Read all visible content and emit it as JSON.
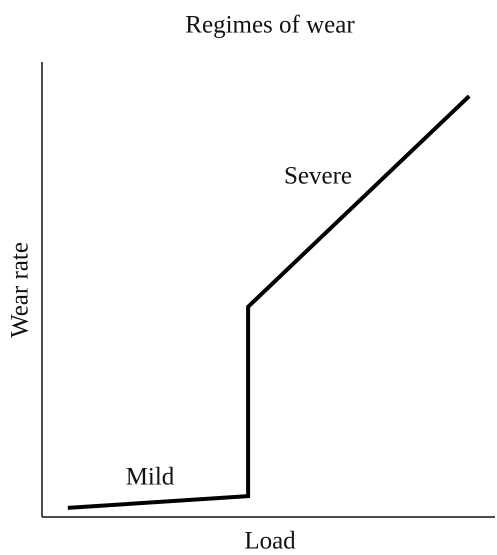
{
  "chart_data": {
    "type": "line",
    "title": "Regimes of wear",
    "x_label": "Load",
    "y_label": "Wear rate",
    "annotations": [
      "Mild",
      "Severe"
    ],
    "x": [
      5.7,
      45.5,
      45.5,
      94.3
    ],
    "series": [
      {
        "color": "#000000",
        "values": [
          2.0,
          4.6,
          46.2,
          92.5
        ]
      }
    ],
    "xlim": [
      0,
      100
    ],
    "ylim": [
      0,
      100
    ]
  }
}
